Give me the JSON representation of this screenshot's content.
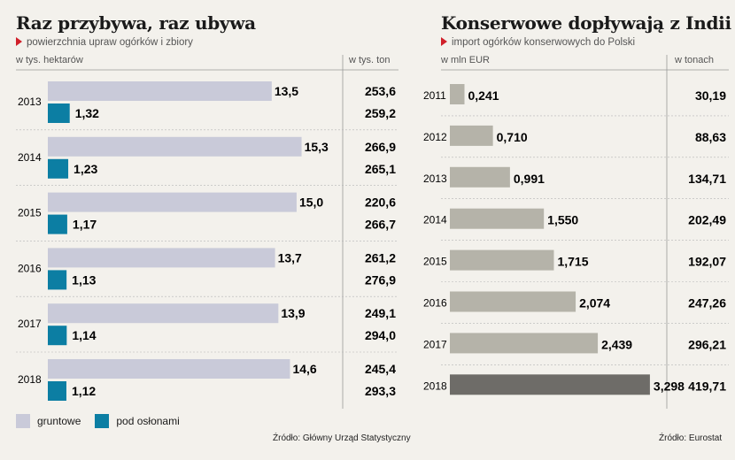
{
  "colors": {
    "gruntowe": "#c9cad9",
    "oslony": "#0c7ea3",
    "import": "#b5b3a9",
    "import_highlight": "#6e6c68",
    "accent": "#d0202a"
  },
  "left": {
    "title": "Raz przybywa, raz ubywa",
    "subtitle": "powierzchnia upraw ogórków i zbiory",
    "col_left": "w tys. hektarów",
    "col_right": "w tys. ton",
    "legend": [
      "gruntowe",
      "pod osłonami"
    ],
    "source": "Źródło: Główny Urząd Statystyczny"
  },
  "right": {
    "title": "Konserwowe dopływają z Indii",
    "subtitle": "import ogórków konserwowych do Polski",
    "col_left": "w mln EUR",
    "col_right": "w tonach",
    "source": "Źródło: Eurostat"
  },
  "chart_data": [
    {
      "type": "bar",
      "title": "Raz przybywa, raz ubywa",
      "subtitle": "powierzchnia upraw ogórków i zbiory",
      "categories": [
        "2013",
        "2014",
        "2015",
        "2016",
        "2017",
        "2018"
      ],
      "series": [
        {
          "name": "gruntowe",
          "values": [
            13.5,
            15.3,
            15.0,
            13.7,
            13.9,
            14.6
          ],
          "labels": [
            "13,5",
            "15,3",
            "15,0",
            "13,7",
            "13,9",
            "14,6"
          ],
          "tons": [
            "253,6",
            "266,9",
            "220,6",
            "261,2",
            "249,1",
            "245,4"
          ]
        },
        {
          "name": "pod osłonami",
          "values": [
            1.32,
            1.23,
            1.17,
            1.13,
            1.14,
            1.12
          ],
          "labels": [
            "1,32",
            "1,23",
            "1,17",
            "1,13",
            "1,14",
            "1,12"
          ],
          "tons": [
            "259,2",
            "265,1",
            "266,7",
            "276,9",
            "294,0",
            "293,3"
          ]
        }
      ],
      "xlabel": "w tys. hektarów",
      "table_label": "w tys. ton",
      "xlim": [
        0,
        20
      ]
    },
    {
      "type": "bar",
      "title": "Konserwowe dopływają z Indii",
      "subtitle": "import ogórków konserwowych do Polski",
      "categories": [
        "2011",
        "2012",
        "2013",
        "2014",
        "2015",
        "2016",
        "2017",
        "2018"
      ],
      "values": [
        0.241,
        0.71,
        0.991,
        1.55,
        1.715,
        2.074,
        2.439,
        3.298
      ],
      "labels": [
        "0,241",
        "0,710",
        "0,991",
        "1,550",
        "1,715",
        "2,074",
        "2,439",
        "3,298"
      ],
      "tons": [
        "30,19",
        "88,63",
        "134,71",
        "202,49",
        "192,07",
        "247,26",
        "296,21",
        "419,71"
      ],
      "xlabel": "w mln EUR",
      "table_label": "w tonach",
      "highlight": "2018",
      "xlim": [
        0,
        3.9
      ]
    }
  ]
}
